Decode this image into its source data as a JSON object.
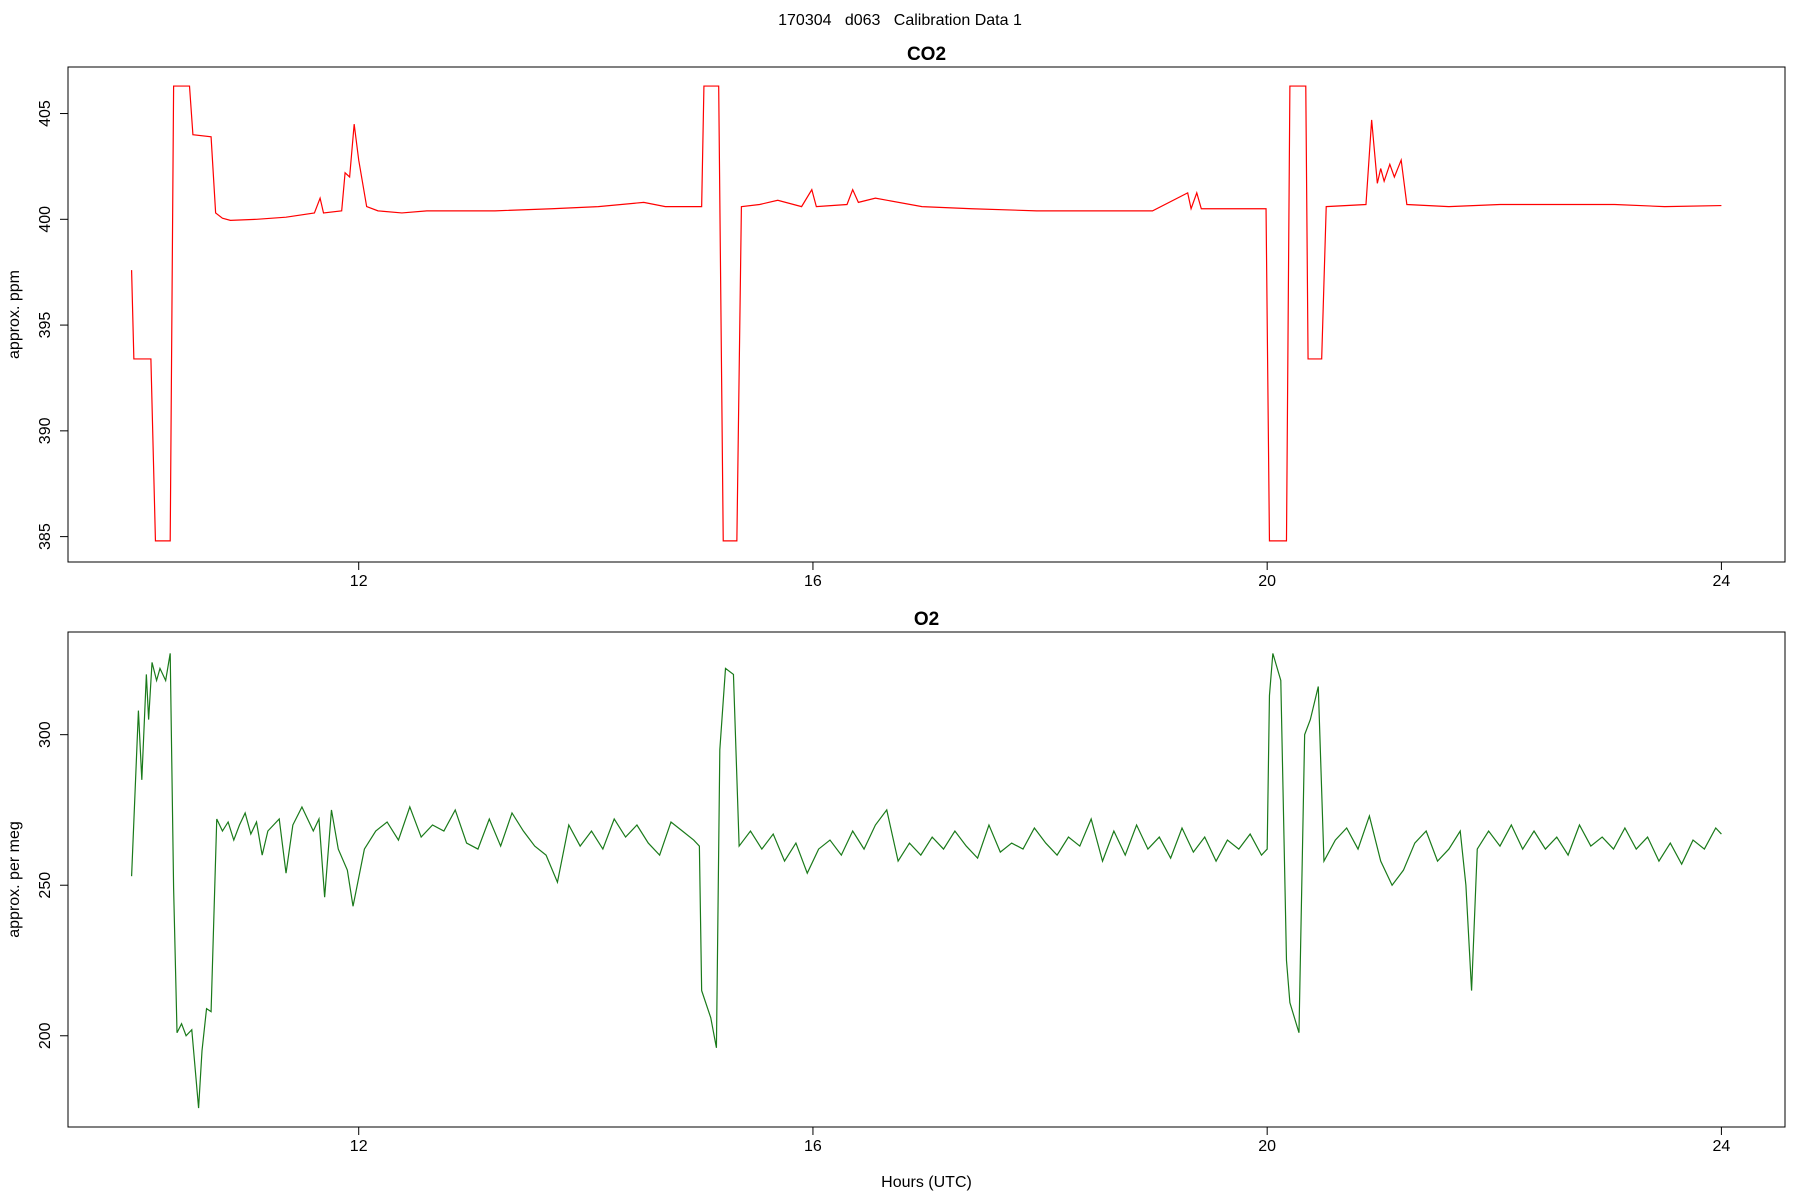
{
  "title": "170304   d063   Calibration Data 1",
  "chart_data": [
    {
      "type": "line",
      "title": "CO2",
      "ylabel": "approx. ppm",
      "color": "#ff0000",
      "xlim": [
        9.44,
        24.56
      ],
      "xticks": [
        12,
        16,
        20,
        24
      ],
      "ylim": [
        383.8,
        407.2
      ],
      "yticks": [
        385,
        390,
        395,
        400,
        405
      ],
      "x": [
        10.0,
        10.02,
        10.17,
        10.21,
        10.34,
        10.37,
        10.51,
        10.54,
        10.7,
        10.74,
        10.8,
        10.87,
        11.1,
        11.36,
        11.61,
        11.66,
        11.69,
        11.85,
        11.88,
        11.92,
        11.96,
        12.0,
        12.07,
        12.17,
        12.38,
        12.6,
        12.89,
        13.2,
        13.7,
        14.11,
        14.51,
        14.7,
        14.82,
        15.02,
        15.04,
        15.17,
        15.21,
        15.33,
        15.37,
        15.53,
        15.69,
        15.9,
        15.99,
        16.03,
        16.3,
        16.35,
        16.4,
        16.55,
        16.96,
        17.4,
        17.97,
        18.5,
        18.99,
        19.3,
        19.33,
        19.38,
        19.42,
        19.6,
        19.99,
        20.02,
        20.17,
        20.2,
        20.34,
        20.36,
        20.48,
        20.52,
        20.87,
        20.92,
        20.97,
        21.0,
        21.03,
        21.08,
        21.12,
        21.18,
        21.23,
        21.6,
        22.05,
        22.5,
        23.06,
        23.5,
        24.0
      ],
      "values": [
        397.6,
        393.4,
        393.4,
        384.8,
        384.8,
        406.3,
        406.3,
        404.0,
        403.9,
        400.3,
        400.05,
        399.95,
        400.0,
        400.1,
        400.3,
        401.0,
        400.3,
        400.4,
        402.2,
        402.0,
        404.5,
        402.8,
        400.6,
        400.4,
        400.3,
        400.4,
        400.4,
        400.4,
        400.5,
        400.6,
        400.8,
        400.6,
        400.6,
        400.6,
        406.3,
        406.3,
        384.8,
        384.8,
        400.6,
        400.7,
        400.9,
        400.6,
        401.4,
        400.6,
        400.7,
        401.4,
        400.8,
        401.0,
        400.6,
        400.5,
        400.4,
        400.4,
        400.4,
        401.25,
        400.5,
        401.25,
        400.5,
        400.5,
        400.5,
        384.8,
        384.8,
        406.3,
        406.3,
        393.4,
        393.4,
        400.6,
        400.7,
        404.7,
        401.7,
        402.4,
        401.8,
        402.6,
        402.0,
        402.8,
        400.7,
        400.6,
        400.7,
        400.7,
        400.7,
        400.6,
        400.65
      ]
    },
    {
      "type": "line",
      "title": "O2",
      "ylabel": "approx. per meg",
      "xlabel": "Hours (UTC)",
      "color": "#1a7a1a",
      "xlim": [
        9.44,
        24.56
      ],
      "xticks": [
        12,
        16,
        20,
        24
      ],
      "ylim": [
        169.7,
        334.1
      ],
      "yticks": [
        200,
        250,
        300
      ],
      "x": [
        10.0,
        10.06,
        10.09,
        10.13,
        10.15,
        10.18,
        10.22,
        10.25,
        10.3,
        10.34,
        10.37,
        10.4,
        10.44,
        10.48,
        10.53,
        10.59,
        10.62,
        10.66,
        10.7,
        10.75,
        10.8,
        10.85,
        10.9,
        10.95,
        11.0,
        11.05,
        11.1,
        11.15,
        11.2,
        11.3,
        11.36,
        11.42,
        11.5,
        11.6,
        11.65,
        11.7,
        11.76,
        11.82,
        11.9,
        11.95,
        12.05,
        12.15,
        12.25,
        12.35,
        12.45,
        12.55,
        12.65,
        12.75,
        12.85,
        12.95,
        13.05,
        13.15,
        13.25,
        13.35,
        13.45,
        13.55,
        13.65,
        13.75,
        13.85,
        13.95,
        14.05,
        14.15,
        14.25,
        14.35,
        14.45,
        14.55,
        14.65,
        14.75,
        14.85,
        14.95,
        15.0,
        15.02,
        15.1,
        15.15,
        15.18,
        15.23,
        15.3,
        15.35,
        15.45,
        15.55,
        15.65,
        15.75,
        15.85,
        15.95,
        16.05,
        16.15,
        16.25,
        16.35,
        16.45,
        16.55,
        16.65,
        16.75,
        16.85,
        16.95,
        17.05,
        17.15,
        17.25,
        17.35,
        17.45,
        17.55,
        17.65,
        17.75,
        17.85,
        17.95,
        18.05,
        18.15,
        18.25,
        18.35,
        18.45,
        18.55,
        18.65,
        18.75,
        18.85,
        18.95,
        19.05,
        19.15,
        19.25,
        19.35,
        19.45,
        19.55,
        19.65,
        19.75,
        19.85,
        19.95,
        20.0,
        20.02,
        20.05,
        20.12,
        20.17,
        20.2,
        20.28,
        20.33,
        20.38,
        20.45,
        20.5,
        20.6,
        20.7,
        20.8,
        20.9,
        21.0,
        21.1,
        21.2,
        21.3,
        21.4,
        21.5,
        21.6,
        21.7,
        21.75,
        21.8,
        21.85,
        21.95,
        22.05,
        22.15,
        22.25,
        22.35,
        22.45,
        22.55,
        22.65,
        22.75,
        22.85,
        22.95,
        23.05,
        23.15,
        23.25,
        23.35,
        23.45,
        23.55,
        23.65,
        23.75,
        23.85,
        23.95,
        24.0
      ],
      "values": [
        253,
        308,
        285,
        320,
        305,
        324,
        318,
        322,
        318,
        327,
        249,
        201,
        204,
        200,
        202,
        176,
        195,
        209,
        208,
        272,
        268,
        271,
        265,
        270,
        274,
        267,
        271,
        260,
        268,
        272,
        254,
        270,
        276,
        268,
        272,
        246,
        275,
        262,
        255,
        243,
        262,
        268,
        271,
        265,
        276,
        266,
        270,
        268,
        275,
        264,
        262,
        272,
        263,
        274,
        268,
        263,
        260,
        251,
        270,
        263,
        268,
        262,
        272,
        266,
        270,
        264,
        260,
        271,
        268,
        265,
        263,
        215,
        206,
        196,
        295,
        322,
        320,
        263,
        268,
        262,
        267,
        258,
        264,
        254,
        262,
        265,
        260,
        268,
        262,
        270,
        275,
        258,
        264,
        260,
        266,
        262,
        268,
        263,
        259,
        270,
        261,
        264,
        262,
        269,
        264,
        260,
        266,
        263,
        272,
        258,
        268,
        260,
        270,
        262,
        266,
        259,
        269,
        261,
        266,
        258,
        265,
        262,
        267,
        260,
        262,
        313,
        327,
        318,
        225,
        211,
        201,
        300,
        305,
        316,
        258,
        265,
        269,
        262,
        273,
        258,
        250,
        255,
        264,
        268,
        258,
        262,
        268,
        250,
        215,
        262,
        268,
        263,
        270,
        262,
        268,
        262,
        266,
        260,
        270,
        263,
        266,
        262,
        269,
        262,
        266,
        258,
        264,
        257,
        265,
        262,
        269,
        267
      ]
    }
  ]
}
